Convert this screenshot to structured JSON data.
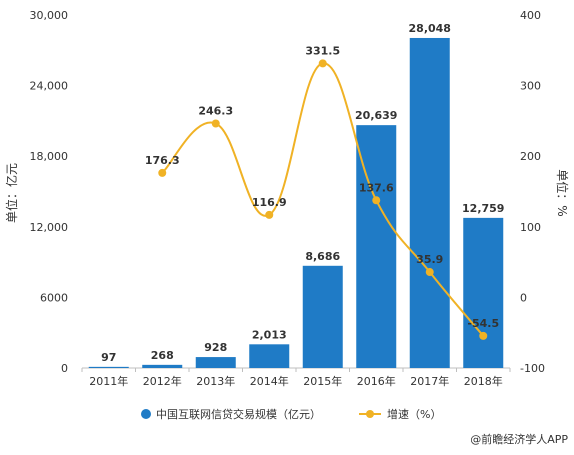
{
  "chart_data": {
    "type": "bar+line",
    "categories": [
      "2011年",
      "2012年",
      "2013年",
      "2014年",
      "2015年",
      "2016年",
      "2017年",
      "2018年"
    ],
    "series": [
      {
        "name": "中国互联网信贷交易规模（亿元）",
        "type": "bar",
        "axis": "left",
        "color": "#1f7bc6",
        "values": [
          97,
          268,
          928,
          2013,
          8686,
          20639,
          28048,
          12759
        ],
        "labels": [
          "97",
          "268",
          "928",
          "2,013",
          "8,686",
          "20,639",
          "28,048",
          "12,759"
        ]
      },
      {
        "name": "增速（%）",
        "type": "line",
        "axis": "right",
        "color": "#f0b225",
        "values": [
          null,
          176.3,
          246.3,
          116.9,
          331.5,
          137.6,
          35.9,
          -54.5
        ],
        "labels": [
          "",
          "176.3",
          "246.3",
          "116.9",
          "331.5",
          "137.6",
          "35.9",
          "-54.5"
        ]
      }
    ],
    "ylabel_left": "单位：亿元",
    "ylabel_right": "单位：%",
    "ylim_left": [
      0,
      30000
    ],
    "yticks_left": [
      "0",
      "6000",
      "12,000",
      "18,000",
      "24,000",
      "30,000"
    ],
    "ylim_right": [
      -100,
      400
    ],
    "yticks_right": [
      "-100",
      "0",
      "100",
      "200",
      "300",
      "400"
    ],
    "grid": false,
    "legend_position": "bottom"
  },
  "source": "@前瞻经济学人APP"
}
